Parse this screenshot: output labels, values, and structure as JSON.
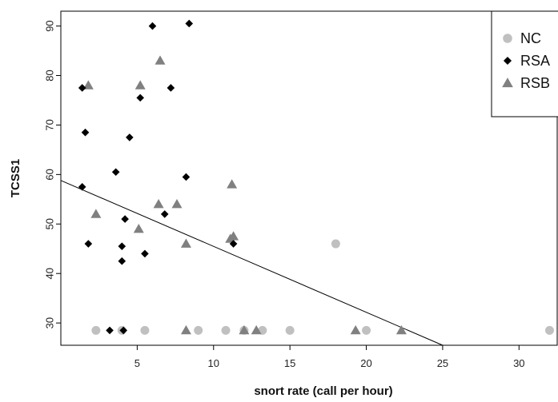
{
  "chart_data": {
    "type": "scatter",
    "title": "",
    "xlabel": "snort rate (call per hour)",
    "ylabel": "TCSS1",
    "xlim": [
      0,
      32.5
    ],
    "ylim": [
      25.5,
      93
    ],
    "xticks": [
      5,
      10,
      15,
      20,
      25,
      30
    ],
    "yticks": [
      30,
      40,
      50,
      60,
      70,
      80,
      90
    ],
    "grid": false,
    "legend_position": "top-right",
    "series": [
      {
        "name": "NC",
        "marker": "circle",
        "color": "#c0c0c0",
        "points": [
          [
            2.3,
            28.5
          ],
          [
            4.0,
            28.5
          ],
          [
            5.5,
            28.5
          ],
          [
            9.0,
            28.5
          ],
          [
            10.8,
            28.5
          ],
          [
            12.0,
            28.5
          ],
          [
            13.2,
            28.5
          ],
          [
            15.0,
            28.5
          ],
          [
            18.0,
            46.0
          ],
          [
            20.0,
            28.5
          ],
          [
            32.0,
            28.5
          ]
        ]
      },
      {
        "name": "RSA",
        "marker": "diamond",
        "color": "#000000",
        "points": [
          [
            1.4,
            77.5
          ],
          [
            1.6,
            68.5
          ],
          [
            1.4,
            57.5
          ],
          [
            1.8,
            46.0
          ],
          [
            3.2,
            28.5
          ],
          [
            3.6,
            60.5
          ],
          [
            4.0,
            45.5
          ],
          [
            4.0,
            42.5
          ],
          [
            4.1,
            28.5
          ],
          [
            4.2,
            51.0
          ],
          [
            4.5,
            67.5
          ],
          [
            5.2,
            75.5
          ],
          [
            5.5,
            44.0
          ],
          [
            6.0,
            90.0
          ],
          [
            6.8,
            52.0
          ],
          [
            7.2,
            77.5
          ],
          [
            8.2,
            59.5
          ],
          [
            8.4,
            90.5
          ],
          [
            11.3,
            46.0
          ]
        ]
      },
      {
        "name": "RSB",
        "marker": "triangle",
        "color": "#808080",
        "points": [
          [
            1.8,
            78.0
          ],
          [
            2.3,
            52.0
          ],
          [
            5.1,
            49.0
          ],
          [
            5.2,
            78.0
          ],
          [
            6.4,
            54.0
          ],
          [
            6.5,
            83.0
          ],
          [
            7.6,
            54.0
          ],
          [
            8.2,
            46.0
          ],
          [
            8.2,
            28.5
          ],
          [
            11.1,
            47.0
          ],
          [
            11.2,
            58.0
          ],
          [
            11.3,
            47.5
          ],
          [
            12.0,
            28.5
          ],
          [
            12.8,
            28.5
          ],
          [
            19.3,
            28.5
          ],
          [
            22.3,
            28.5
          ]
        ]
      }
    ],
    "trendline": {
      "x": [
        0,
        25
      ],
      "y": [
        58.8,
        25.5
      ]
    }
  }
}
